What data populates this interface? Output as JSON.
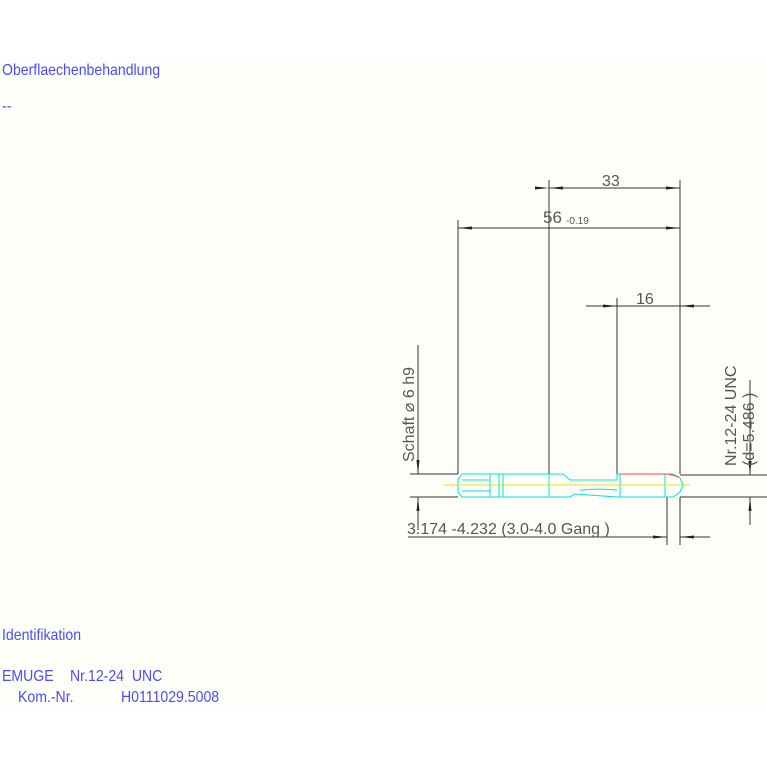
{
  "surface": {
    "heading": "Oberflaechenbehandlung",
    "value": "--"
  },
  "identification": {
    "heading": "Identifikation",
    "line1_maker": "EMUGE",
    "line1_thread": "Nr.12-24  UNC",
    "line2_label": "Kom.-Nr.",
    "line2_value": "H0111029.5008"
  },
  "drawing": {
    "dim_33": "33",
    "dim_56": "56",
    "dim_56_tol": "-0.19",
    "dim_16": "16",
    "shank_label": "Schaft  ⌀ 6  h9",
    "thread_label": "Nr.12-24  UNC",
    "thread_diam": "(d=5.486  )",
    "chamfer_label": "3.174  -4.232 (3.0-4.0  Gang   )",
    "colors": {
      "text": "#4a4aff",
      "lines": "#333333",
      "part": "#00e5e5",
      "axis": "#e5e500",
      "thread_crest": "#ff4040"
    }
  }
}
